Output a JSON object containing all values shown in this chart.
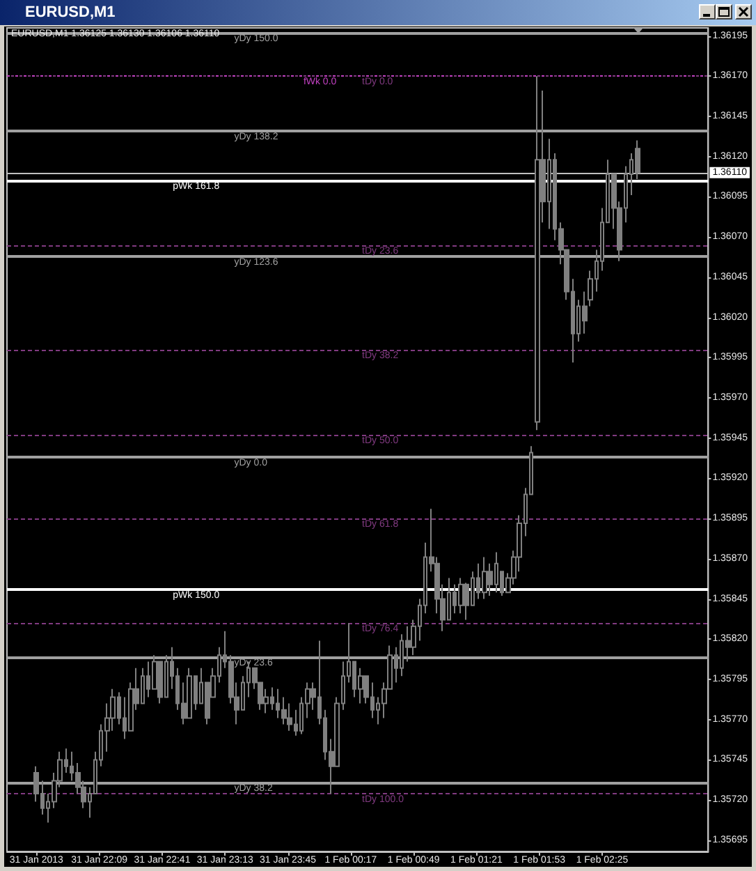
{
  "chart_data": {
    "type": "candlestick",
    "title": "EURUSD,M1",
    "subtitle": "EURUSD,M1 1.36125 1.36130 1.36106 1.36110",
    "color": "#808080",
    "x": [
      "2013-01-31T21:37",
      "2013-01-31T21:40",
      "2013-01-31T21:43",
      "2013-01-31T21:46",
      "2013-01-31T21:49",
      "2013-01-31T21:52",
      "2013-01-31T21:55",
      "2013-01-31T21:58",
      "2013-01-31T22:01",
      "2013-01-31T22:04",
      "2013-01-31T22:07",
      "2013-01-31T22:10",
      "2013-01-31T22:13",
      "2013-01-31T22:16",
      "2013-01-31T22:19",
      "2013-01-31T22:22",
      "2013-01-31T22:25",
      "2013-01-31T22:28",
      "2013-01-31T22:31",
      "2013-01-31T22:34",
      "2013-01-31T22:37",
      "2013-01-31T22:40",
      "2013-01-31T22:43",
      "2013-01-31T22:46",
      "2013-01-31T22:49",
      "2013-01-31T22:52",
      "2013-01-31T22:55",
      "2013-01-31T22:58",
      "2013-01-31T23:01",
      "2013-01-31T23:04",
      "2013-01-31T23:07",
      "2013-01-31T23:10",
      "2013-01-31T23:13",
      "2013-01-31T23:16",
      "2013-01-31T23:19",
      "2013-01-31T23:22",
      "2013-01-31T23:25",
      "2013-01-31T23:28",
      "2013-01-31T23:31",
      "2013-01-31T23:34",
      "2013-01-31T23:37",
      "2013-01-31T23:40",
      "2013-01-31T23:43",
      "2013-01-31T23:46",
      "2013-01-31T23:49",
      "2013-01-31T23:52",
      "2013-01-31T23:55",
      "2013-01-31T23:58",
      "2013-02-01T00:01",
      "2013-02-01T00:04",
      "2013-02-01T00:07",
      "2013-02-01T00:10",
      "2013-02-01T00:13",
      "2013-02-01T00:16",
      "2013-02-01T00:19",
      "2013-02-01T00:22",
      "2013-02-01T00:25",
      "2013-02-01T00:28",
      "2013-02-01T00:31",
      "2013-02-01T00:34",
      "2013-02-01T00:37",
      "2013-02-01T00:40",
      "2013-02-01T00:43",
      "2013-02-01T00:46",
      "2013-02-01T00:49",
      "2013-02-01T00:52",
      "2013-02-01T00:55",
      "2013-02-01T00:58",
      "2013-02-01T01:01",
      "2013-02-01T01:04",
      "2013-02-01T01:07",
      "2013-02-01T01:10",
      "2013-02-01T01:13",
      "2013-02-01T01:16",
      "2013-02-01T01:19",
      "2013-02-01T01:22",
      "2013-02-01T01:25",
      "2013-02-01T01:28",
      "2013-02-01T01:31",
      "2013-02-01T01:34",
      "2013-02-01T01:37",
      "2013-02-01T01:40",
      "2013-02-01T01:43",
      "2013-02-01T01:46",
      "2013-02-01T01:49",
      "2013-02-01T01:52",
      "2013-02-01T01:55",
      "2013-02-01T01:58",
      "2013-02-01T02:01",
      "2013-02-01T02:04",
      "2013-02-01T02:07",
      "2013-02-01T02:10",
      "2013-02-01T02:13",
      "2013-02-01T02:16",
      "2013-02-01T02:19",
      "2013-02-01T02:22",
      "2013-02-01T02:25",
      "2013-02-01T02:28",
      "2013-02-01T02:31",
      "2013-02-01T02:34",
      "2013-02-01T02:37",
      "2013-02-01T02:40",
      "2013-02-01T02:43"
    ],
    "ohlc": [
      [
        1.35737,
        1.35741,
        1.35719,
        1.35724
      ],
      [
        1.35724,
        1.35732,
        1.35711,
        1.35715
      ],
      [
        1.35715,
        1.35724,
        1.35706,
        1.35719
      ],
      [
        1.35719,
        1.35737,
        1.35715,
        1.35732
      ],
      [
        1.35732,
        1.3575,
        1.35728,
        1.35745
      ],
      [
        1.35745,
        1.35752,
        1.35737,
        1.35741
      ],
      [
        1.35741,
        1.3575,
        1.35732,
        1.35737
      ],
      [
        1.35737,
        1.35743,
        1.35724,
        1.35728
      ],
      [
        1.35728,
        1.35732,
        1.35715,
        1.35719
      ],
      [
        1.35719,
        1.35728,
        1.35709,
        1.35724
      ],
      [
        1.35724,
        1.3575,
        1.35724,
        1.35745
      ],
      [
        1.35745,
        1.35767,
        1.35741,
        1.35763
      ],
      [
        1.35763,
        1.3578,
        1.3575,
        1.35771
      ],
      [
        1.35771,
        1.35789,
        1.35763,
        1.35784
      ],
      [
        1.35784,
        1.35787,
        1.35767,
        1.35771
      ],
      [
        1.35771,
        1.35784,
        1.35758,
        1.35763
      ],
      [
        1.35763,
        1.35793,
        1.35763,
        1.35789
      ],
      [
        1.35789,
        1.35802,
        1.35776,
        1.3578
      ],
      [
        1.3578,
        1.35802,
        1.3578,
        1.35797
      ],
      [
        1.35797,
        1.35806,
        1.35784,
        1.35789
      ],
      [
        1.35789,
        1.3581,
        1.35789,
        1.35806
      ],
      [
        1.35806,
        1.35806,
        1.3578,
        1.35784
      ],
      [
        1.35784,
        1.3581,
        1.35784,
        1.35806
      ],
      [
        1.35806,
        1.35815,
        1.35789,
        1.35797
      ],
      [
        1.35797,
        1.35802,
        1.35776,
        1.3578
      ],
      [
        1.3578,
        1.35793,
        1.35767,
        1.35771
      ],
      [
        1.35771,
        1.35802,
        1.35771,
        1.35797
      ],
      [
        1.35797,
        1.35797,
        1.35776,
        1.3578
      ],
      [
        1.3578,
        1.35802,
        1.3578,
        1.35793
      ],
      [
        1.35793,
        1.35793,
        1.35767,
        1.35771
      ],
      [
        1.35784,
        1.35802,
        1.35784,
        1.35797
      ],
      [
        1.35797,
        1.35815,
        1.35793,
        1.3581
      ],
      [
        1.3581,
        1.35825,
        1.35802,
        1.35806
      ],
      [
        1.35806,
        1.3581,
        1.3578,
        1.35784
      ],
      [
        1.35784,
        1.35793,
        1.35767,
        1.35776
      ],
      [
        1.35776,
        1.35797,
        1.35776,
        1.35793
      ],
      [
        1.35793,
        1.35806,
        1.35784,
        1.35802
      ],
      [
        1.35802,
        1.35802,
        1.35789,
        1.35793
      ],
      [
        1.35793,
        1.35793,
        1.35776,
        1.3578
      ],
      [
        1.3578,
        1.35789,
        1.35774,
        1.35784
      ],
      [
        1.35784,
        1.3579,
        1.35776,
        1.3578
      ],
      [
        1.3578,
        1.35789,
        1.35771,
        1.35776
      ],
      [
        1.35776,
        1.35784,
        1.35767,
        1.35771
      ],
      [
        1.35771,
        1.3578,
        1.35763,
        1.35767
      ],
      [
        1.35767,
        1.35776,
        1.3576,
        1.35763
      ],
      [
        1.35763,
        1.35784,
        1.35761,
        1.3578
      ],
      [
        1.3578,
        1.35793,
        1.35771,
        1.35789
      ],
      [
        1.35789,
        1.35793,
        1.35776,
        1.35784
      ],
      [
        1.35784,
        1.35819,
        1.35767,
        1.35771
      ],
      [
        1.35771,
        1.35776,
        1.35745,
        1.3575
      ],
      [
        1.3575,
        1.35758,
        1.35724,
        1.35741
      ],
      [
        1.35741,
        1.35784,
        1.35741,
        1.3578
      ],
      [
        1.3578,
        1.35806,
        1.35776,
        1.35797
      ],
      [
        1.35797,
        1.3583,
        1.35793,
        1.35806
      ],
      [
        1.35806,
        1.35806,
        1.35784,
        1.35789
      ],
      [
        1.35789,
        1.35802,
        1.3578,
        1.35797
      ],
      [
        1.35797,
        1.35797,
        1.3578,
        1.35784
      ],
      [
        1.35784,
        1.35793,
        1.35771,
        1.35776
      ],
      [
        1.35776,
        1.35784,
        1.35767,
        1.3578
      ],
      [
        1.3578,
        1.35793,
        1.35771,
        1.35789
      ],
      [
        1.35789,
        1.35816,
        1.35789,
        1.3581
      ],
      [
        1.3581,
        1.35815,
        1.35793,
        1.35802
      ],
      [
        1.35802,
        1.35823,
        1.35797,
        1.35819
      ],
      [
        1.35819,
        1.35828,
        1.35806,
        1.35815
      ],
      [
        1.35815,
        1.35832,
        1.3581,
        1.35828
      ],
      [
        1.35828,
        1.35845,
        1.35819,
        1.35841
      ],
      [
        1.35841,
        1.3588,
        1.35836,
        1.35871
      ],
      [
        1.35871,
        1.35901,
        1.35862,
        1.35867
      ],
      [
        1.35867,
        1.35871,
        1.35836,
        1.35845
      ],
      [
        1.35845,
        1.35854,
        1.35825,
        1.35832
      ],
      [
        1.35832,
        1.35858,
        1.35832,
        1.35849
      ],
      [
        1.35849,
        1.35854,
        1.35836,
        1.35841
      ],
      [
        1.35841,
        1.35858,
        1.35836,
        1.35854
      ],
      [
        1.35854,
        1.35855,
        1.35832,
        1.35841
      ],
      [
        1.35841,
        1.35862,
        1.35841,
        1.35858
      ],
      [
        1.35858,
        1.35867,
        1.35845,
        1.35849
      ],
      [
        1.35849,
        1.35871,
        1.35845,
        1.35862
      ],
      [
        1.35862,
        1.35867,
        1.35847,
        1.35854
      ],
      [
        1.35854,
        1.35874,
        1.35849,
        1.35867
      ],
      [
        1.35862,
        1.35862,
        1.35847,
        1.35849
      ],
      [
        1.35849,
        1.35861,
        1.35849,
        1.35858
      ],
      [
        1.35858,
        1.35875,
        1.35854,
        1.35871
      ],
      [
        1.35871,
        1.35897,
        1.35862,
        1.35892
      ],
      [
        1.35892,
        1.35914,
        1.35884,
        1.3591
      ],
      [
        1.3591,
        1.3594,
        1.3591,
        1.35936
      ],
      [
        1.35955,
        1.3617,
        1.3595,
        1.36118
      ],
      [
        1.36118,
        1.36161,
        1.36079,
        1.36092
      ],
      [
        1.36092,
        1.36131,
        1.36075,
        1.36118
      ],
      [
        1.36118,
        1.36122,
        1.36068,
        1.36075
      ],
      [
        1.36075,
        1.36079,
        1.36053,
        1.36062
      ],
      [
        1.36062,
        1.36062,
        1.36031,
        1.36036
      ],
      [
        1.36036,
        1.36044,
        1.35992,
        1.3601
      ],
      [
        1.3601,
        1.36031,
        1.36005,
        1.36027
      ],
      [
        1.36027,
        1.36036,
        1.3601,
        1.36018
      ],
      [
        1.36031,
        1.36049,
        1.36027,
        1.36044
      ],
      [
        1.36044,
        1.36062,
        1.36036,
        1.36055
      ],
      [
        1.36055,
        1.36088,
        1.36049,
        1.36079
      ],
      [
        1.36079,
        1.36118,
        1.36079,
        1.36109
      ],
      [
        1.36109,
        1.36109,
        1.36075,
        1.36088
      ],
      [
        1.36088,
        1.36092,
        1.36055,
        1.36062
      ],
      [
        1.36088,
        1.36114,
        1.36079,
        1.36109
      ],
      [
        1.36109,
        1.36122,
        1.36096,
        1.36118
      ],
      [
        1.36125,
        1.3613,
        1.36106,
        1.3611
      ]
    ],
    "xlim": [
      "2013-01-31T21:22",
      "2013-02-01T03:19"
    ],
    "xticks": [
      {
        "value": "2013-01-31T21:37",
        "label": "31 Jan 2013"
      },
      {
        "value": "2013-01-31T22:09",
        "label": "31 Jan 22:09"
      },
      {
        "value": "2013-01-31T22:41",
        "label": "31 Jan 22:41"
      },
      {
        "value": "2013-01-31T23:13",
        "label": "31 Jan 23:13"
      },
      {
        "value": "2013-01-31T23:45",
        "label": "31 Jan 23:45"
      },
      {
        "value": "2013-02-01T00:17",
        "label": "1 Feb 00:17"
      },
      {
        "value": "2013-02-01T00:49",
        "label": "1 Feb 00:49"
      },
      {
        "value": "2013-02-01T01:21",
        "label": "1 Feb 01:21"
      },
      {
        "value": "2013-02-01T01:53",
        "label": "1 Feb 01:53"
      },
      {
        "value": "2013-02-01T02:25",
        "label": "1 Feb 02:25"
      }
    ],
    "ylim": [
      1.35688,
      1.362
    ],
    "yticks": [
      {
        "value": 1.35695,
        "label": "1.35695"
      },
      {
        "value": 1.3572,
        "label": "1.35720"
      },
      {
        "value": 1.35745,
        "label": "1.35745"
      },
      {
        "value": 1.3577,
        "label": "1.35770"
      },
      {
        "value": 1.35795,
        "label": "1.35795"
      },
      {
        "value": 1.3582,
        "label": "1.35820"
      },
      {
        "value": 1.35845,
        "label": "1.35845"
      },
      {
        "value": 1.3587,
        "label": "1.35870"
      },
      {
        "value": 1.35895,
        "label": "1.35895"
      },
      {
        "value": 1.3592,
        "label": "1.35920"
      },
      {
        "value": 1.35945,
        "label": "1.35945"
      },
      {
        "value": 1.3597,
        "label": "1.35970"
      },
      {
        "value": 1.35995,
        "label": "1.35995"
      },
      {
        "value": 1.3602,
        "label": "1.36020"
      },
      {
        "value": 1.36045,
        "label": "1.36045"
      },
      {
        "value": 1.3607,
        "label": "1.36070"
      },
      {
        "value": 1.36095,
        "label": "1.36095"
      },
      {
        "value": 1.3612,
        "label": "1.36120"
      },
      {
        "value": 1.36145,
        "label": "1.36145"
      },
      {
        "value": 1.3617,
        "label": "1.36170"
      },
      {
        "value": 1.36195,
        "label": "1.36195"
      }
    ],
    "grid": false,
    "ref_lines": [
      {
        "axis": "y",
        "value": 1.36197,
        "label": "yDy 150.0",
        "color": "#a0a0a0",
        "line_style": "solid"
      },
      {
        "axis": "y",
        "value": 1.36136,
        "label": "yDy 138.2",
        "color": "#a0a0a0",
        "line_style": "solid"
      },
      {
        "axis": "y",
        "value": 1.36058,
        "label": "yDy 123.6",
        "color": "#a0a0a0",
        "line_style": "solid"
      },
      {
        "axis": "y",
        "value": 1.35933,
        "label": "yDy 0.0",
        "color": "#a0a0a0",
        "line_style": "solid"
      },
      {
        "axis": "y",
        "value": 1.35809,
        "label": "yDy 23.6",
        "color": "#a0a0a0",
        "line_style": "solid"
      },
      {
        "axis": "y",
        "value": 1.35731,
        "label": "yDy 38.2",
        "color": "#a0a0a0",
        "line_style": "solid"
      },
      {
        "axis": "y",
        "value": 1.3617,
        "label": "fWk 0.0",
        "color": "#c040c0",
        "line_style": "dashed"
      },
      {
        "axis": "y",
        "value": 1.3617,
        "label": "tDy 0.0",
        "color": "#803a80",
        "line_style": "dashed"
      },
      {
        "axis": "y",
        "value": 1.36065,
        "label": "tDy 23.6",
        "color": "#803a80",
        "line_style": "dashed"
      },
      {
        "axis": "y",
        "value": 1.36,
        "label": "tDy 38.2",
        "color": "#803a80",
        "line_style": "dashed"
      },
      {
        "axis": "y",
        "value": 1.35947,
        "label": "tDy 50.0",
        "color": "#803a80",
        "line_style": "dashed"
      },
      {
        "axis": "y",
        "value": 1.35895,
        "label": "tDy 61.8",
        "color": "#803a80",
        "line_style": "dashed"
      },
      {
        "axis": "y",
        "value": 1.3583,
        "label": "tDy 76.4",
        "color": "#803a80",
        "line_style": "dashed"
      },
      {
        "axis": "y",
        "value": 1.35724,
        "label": "tDy 100.0",
        "color": "#803a80",
        "line_style": "dashed"
      },
      {
        "axis": "y",
        "value": 1.36105,
        "label": "pWk 161.8",
        "color": "#ffffff",
        "line_style": "solid"
      },
      {
        "axis": "y",
        "value": 1.35851,
        "label": "pWk 150.0",
        "color": "#ffffff",
        "line_style": "solid"
      },
      {
        "axis": "y",
        "value": 1.3611,
        "label": "1.36110",
        "color": "#c0c0c0",
        "line_style": "solid"
      }
    ]
  }
}
